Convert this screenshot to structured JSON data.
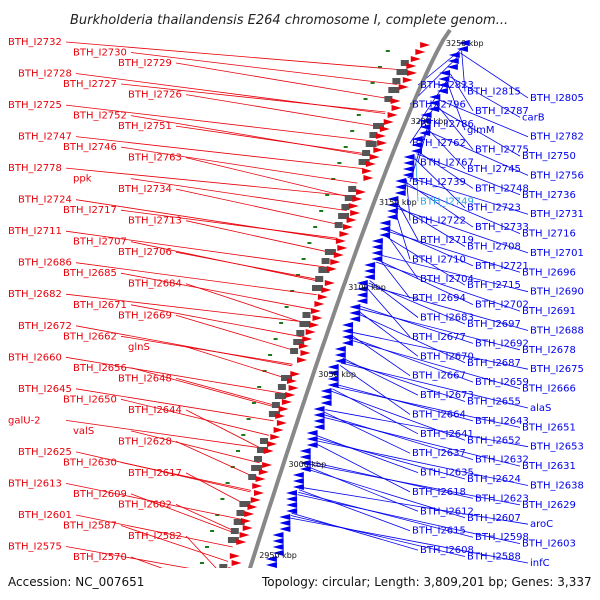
{
  "title": "Burkholderia thailandensis E264 chromosome I, complete genom...",
  "footer": {
    "accession": "Accession: NC_007651",
    "topology": "Topology: circular; Length: 3,809,201 bp; Genes: 3,337"
  },
  "colors": {
    "forward": "#e8000a",
    "reverse": "#0000ee",
    "highlight": "#2aa8e0",
    "backbone": "#888888",
    "tick": "#1a7a1a"
  },
  "ruler": [
    "3250 kbp",
    "3200 kbp",
    "3150 kbp",
    "3100 kbp",
    "3050 kbp",
    "3000 kbp",
    "2950 kbp"
  ],
  "left_labels": [
    "BTH_I2732",
    "BTH_I2730",
    "BTH_I2729",
    "BTH_I2728",
    "BTH_I2727",
    "BTH_I2726",
    "BTH_I2725",
    "BTH_I2752",
    "BTH_I2751",
    "BTH_I2747",
    "BTH_I2746",
    "BTH_I2763",
    "BTH_I2778",
    "ppk",
    "BTH_I2734",
    "BTH_I2724",
    "BTH_I2717",
    "BTH_I2713",
    "BTH_I2711",
    "BTH_I2707",
    "BTH_I2706",
    "BTH_I2686",
    "BTH_I2685",
    "BTH_I2684",
    "BTH_I2682",
    "BTH_I2671",
    "BTH_I2669",
    "BTH_I2672",
    "BTH_I2662",
    "glnS",
    "BTH_I2660",
    "BTH_I2656",
    "BTH_I2648",
    "BTH_I2645",
    "BTH_I2650",
    "BTH_I2644",
    "galU-2",
    "valS",
    "BTH_I2628",
    "BTH_I2625",
    "BTH_I2630",
    "BTH_I2617",
    "BTH_I2613",
    "BTH_I2609",
    "BTH_I2602",
    "BTH_I2601",
    "BTH_I2587",
    "BTH_I2582",
    "BTH_I2575",
    "BTH_I2570"
  ],
  "right_labels": [
    "BTH_I2823",
    "BTH_I2815",
    "BTH_I2805",
    "BTH_I2796",
    "BTH_I2787",
    "carB",
    "BTH_I2786",
    "glmM",
    "BTH_I2782",
    "BTH_I2762",
    "BTH_I2775",
    "BTH_I2750",
    "BTH_I2767",
    "BTH_I2745",
    "BTH_I2756",
    "BTH_I2739",
    "BTH_I2748",
    "BTH_I2736",
    "BTH_I2749",
    "BTH_I2723",
    "BTH_I2731",
    "BTH_I2722",
    "BTH_I2733",
    "BTH_I2716",
    "BTH_I2719",
    "BTH_I2708",
    "BTH_I2701",
    "BTH_I2710",
    "BTH_I2721",
    "BTH_I2696",
    "BTH_I2704",
    "BTH_I2715",
    "BTH_I2690",
    "BTH_I2694",
    "BTH_I2702",
    "BTH_I2691",
    "BTH_I2683",
    "BTH_I2697",
    "BTH_I2688",
    "BTH_I2677",
    "BTH_I2692",
    "BTH_I2678",
    "BTH_I2670",
    "BTH_I2687",
    "BTH_I2675",
    "BTH_I2667",
    "BTH_I2659",
    "BTH_I2666",
    "BTH_I2673",
    "BTH_I2655",
    "alaS",
    "BTH_I2664",
    "BTH_I2643",
    "BTH_I2651",
    "BTH_I2641",
    "BTH_I2652",
    "BTH_I2653",
    "BTH_I2637",
    "BTH_I2632",
    "BTH_I2631",
    "BTH_I2635",
    "BTH_I2624",
    "BTH_I2638",
    "BTH_I2618",
    "BTH_I2623",
    "BTH_I2629",
    "BTH_I2612",
    "BTH_I2607",
    "aroC",
    "BTH_I2615",
    "BTH_I2598",
    "BTH_I2603",
    "BTH_I2608",
    "BTH_I2588",
    "infC"
  ]
}
